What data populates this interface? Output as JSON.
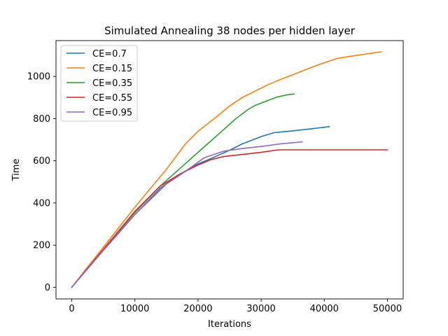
{
  "chart_data": {
    "type": "line",
    "title": "Simulated Annealing 38 nodes per hidden layer",
    "xlabel": "Iterations",
    "ylabel": "Time",
    "xlim": [
      -2500,
      52500
    ],
    "ylim": [
      -55,
      1170
    ],
    "xticks": [
      0,
      10000,
      20000,
      30000,
      40000,
      50000
    ],
    "yticks": [
      0,
      200,
      400,
      600,
      800,
      1000
    ],
    "grid": false,
    "legend_position": "top-left",
    "series": [
      {
        "name": "CE=0.7",
        "color": "#1f77b4",
        "x": [
          0,
          5000,
          10000,
          14000,
          17000,
          20000,
          22000,
          25000,
          27000,
          30000,
          32000,
          35000,
          38000,
          40800
        ],
        "y": [
          0,
          175,
          345,
          470,
          535,
          585,
          610,
          650,
          680,
          715,
          733,
          742,
          752,
          762
        ]
      },
      {
        "name": "CE=0.15",
        "color": "#ff7f0e",
        "x": [
          0,
          5000,
          10000,
          15000,
          18000,
          20000,
          23000,
          25000,
          27000,
          29000,
          31000,
          33000,
          36000,
          39000,
          42000,
          44000,
          47000,
          49000
        ],
        "y": [
          0,
          190,
          380,
          560,
          680,
          740,
          810,
          860,
          900,
          930,
          960,
          985,
          1020,
          1055,
          1085,
          1095,
          1108,
          1117
        ]
      },
      {
        "name": "CE=0.35",
        "color": "#2ca02c",
        "x": [
          0,
          5000,
          10000,
          14000,
          17000,
          20000,
          23000,
          26000,
          28000,
          29000,
          31000,
          32500,
          34000,
          35200
        ],
        "y": [
          0,
          180,
          355,
          480,
          560,
          640,
          720,
          800,
          845,
          862,
          885,
          902,
          912,
          917
        ]
      },
      {
        "name": "CE=0.55",
        "color": "#d62728",
        "x": [
          0,
          5000,
          10000,
          14000,
          17000,
          20000,
          22000,
          24000,
          27000,
          30000,
          32800,
          36000,
          40000,
          45000,
          50000
        ],
        "y": [
          0,
          180,
          360,
          480,
          535,
          580,
          605,
          620,
          630,
          640,
          652,
          652,
          652,
          652,
          652
        ]
      },
      {
        "name": "CE=0.95",
        "color": "#9467bd",
        "x": [
          0,
          5000,
          10000,
          15000,
          18000,
          21000,
          24000,
          27000,
          30000,
          33000,
          36500
        ],
        "y": [
          0,
          175,
          345,
          490,
          550,
          615,
          645,
          658,
          668,
          680,
          690
        ]
      }
    ]
  }
}
